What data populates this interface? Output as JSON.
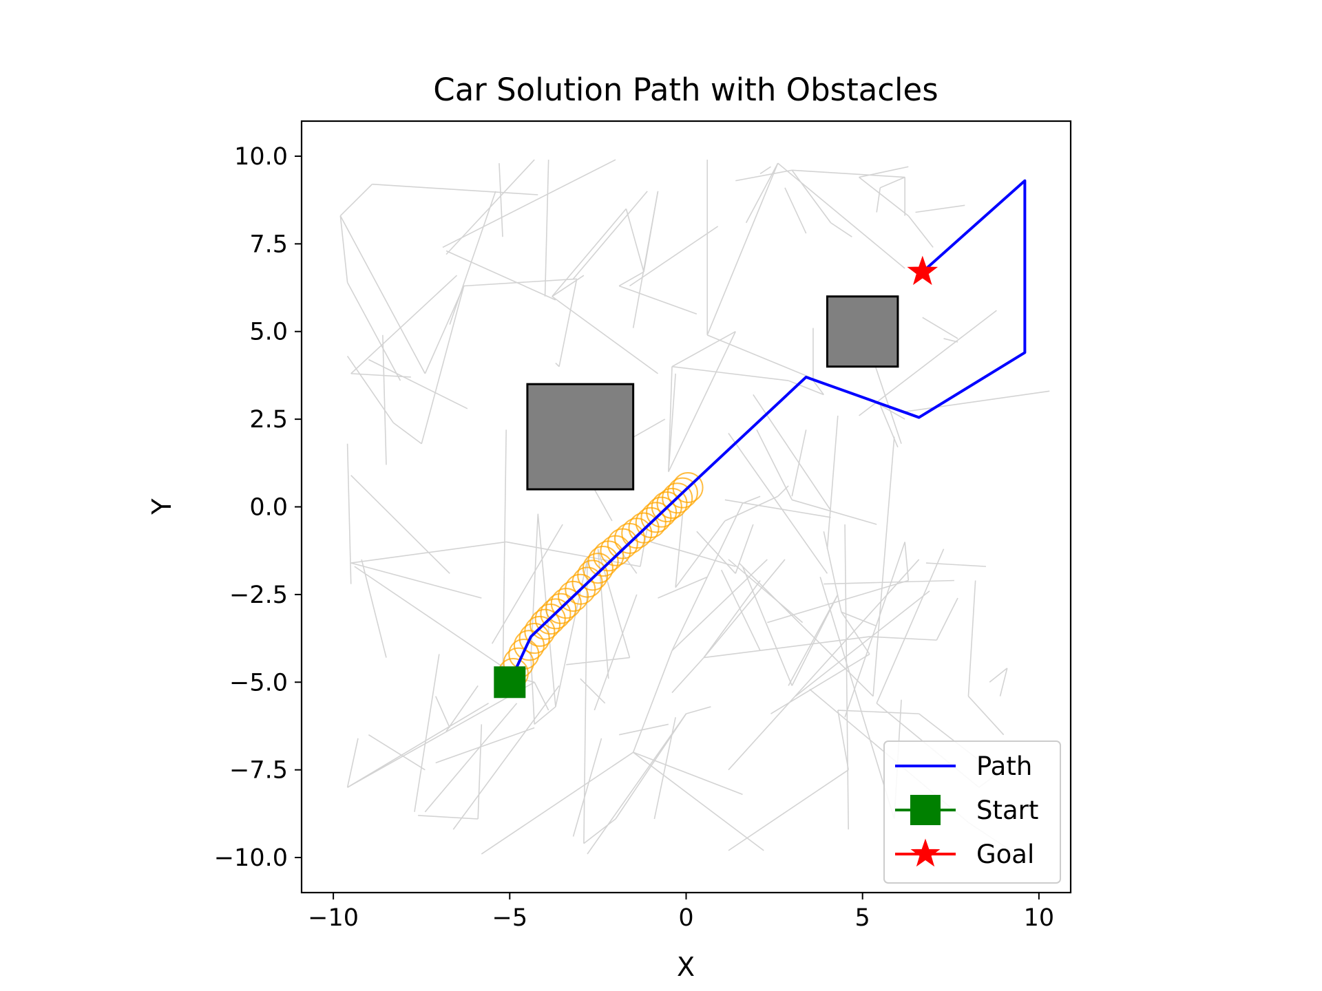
{
  "chart_data": {
    "type": "scatter",
    "title": "Car Solution Path with Obstacles",
    "xlabel": "X",
    "ylabel": "Y",
    "xlim": [
      -10.9,
      10.9
    ],
    "ylim": [
      -11.0,
      11.0
    ],
    "grid": false,
    "legend_placement": "lower-right",
    "x_ticks": [
      -10,
      -5,
      0,
      5,
      10
    ],
    "x_tick_labels": [
      "−10",
      "−5",
      "0",
      "5",
      "10"
    ],
    "y_ticks": [
      10,
      7.5,
      5,
      2.5,
      0,
      -2.5,
      -5,
      -7.5,
      -10
    ],
    "y_tick_labels": [
      "10.0",
      "7.5",
      "5.0",
      "2.5",
      "0.0",
      "−2.5",
      "−5.0",
      "−7.5",
      "−10.0"
    ],
    "colors": {
      "path": "#0000ff",
      "start": "#008000",
      "goal": "#ff0000",
      "tree": "#d3d3d3",
      "footprint": "#ffa500",
      "obstacle_fill": "#808080",
      "obstacle_edge": "#000000"
    },
    "obstacles": [
      {
        "x0": -4.5,
        "y0": 0.5,
        "x1": -1.5,
        "y1": 3.5
      },
      {
        "x0": 4.0,
        "y0": 4.0,
        "x1": 6.0,
        "y1": 6.0
      }
    ],
    "series": [
      {
        "name": "Path",
        "x": [
          -5.0,
          -4.4,
          0.0,
          3.4,
          6.6,
          9.6,
          9.6,
          6.7
        ],
        "y": [
          -5.0,
          -3.7,
          0.5,
          3.7,
          2.55,
          4.4,
          9.3,
          6.7
        ]
      }
    ],
    "start": {
      "name": "Start",
      "x": -5.0,
      "y": -5.0
    },
    "goal": {
      "name": "Goal",
      "x": 6.7,
      "y": 6.7
    },
    "footprints": {
      "x": [
        -4.9,
        -4.75,
        -4.6,
        -4.45,
        -4.3,
        -4.15,
        -4.0,
        -3.85,
        -3.7,
        -3.55,
        -3.4,
        -3.2,
        -3.0,
        -2.8,
        -2.65,
        -2.5,
        -2.35,
        -2.2,
        -2.0,
        -1.8,
        -1.6,
        -1.4,
        -1.2,
        -1.0,
        -0.85,
        -0.7,
        -0.55,
        -0.4,
        -0.25,
        -0.1,
        0.05
      ],
      "y": [
        -4.75,
        -4.45,
        -4.2,
        -3.95,
        -3.75,
        -3.55,
        -3.35,
        -3.2,
        -3.05,
        -2.9,
        -2.75,
        -2.55,
        -2.35,
        -2.15,
        -1.95,
        -1.75,
        -1.55,
        -1.4,
        -1.25,
        -1.05,
        -0.9,
        -0.75,
        -0.6,
        -0.45,
        -0.3,
        -0.15,
        0.0,
        0.1,
        0.25,
        0.4,
        0.55
      ],
      "r": 0.42
    },
    "tree_edges": [
      [
        -9.8,
        8.3,
        -8.9,
        9.2
      ],
      [
        -8.9,
        9.2,
        -4.2,
        8.9
      ],
      [
        -9.8,
        8.3,
        -9.6,
        6.4
      ],
      [
        -9.6,
        6.4,
        -8.1,
        3.6
      ],
      [
        -9.8,
        8.3,
        -7.4,
        3.8
      ],
      [
        -9.5,
        3.8,
        -6.5,
        6.6
      ],
      [
        -9.5,
        3.8,
        -7.8,
        3.7
      ],
      [
        -9.6,
        4.3,
        -8.3,
        2.4
      ],
      [
        -8.3,
        2.4,
        -7.5,
        1.8
      ],
      [
        -8.6,
        4.9,
        -8.5,
        1.2
      ],
      [
        -9.6,
        1.8,
        -9.5,
        -2.2
      ],
      [
        -9.5,
        0.9,
        -6.7,
        -1.9
      ],
      [
        -9.5,
        -1.6,
        -5.1,
        -1.0
      ],
      [
        -9.5,
        -1.6,
        -5.8,
        -2.6
      ],
      [
        -9.4,
        -1.7,
        -4.7,
        -4.9
      ],
      [
        -9.6,
        -8.0,
        -9.3,
        -6.6
      ],
      [
        -9.6,
        -8.0,
        -5.6,
        -5.6
      ],
      [
        -9.6,
        -8.0,
        -4.3,
        -5.0
      ],
      [
        -9.0,
        -6.5,
        -7.4,
        -7.5
      ],
      [
        -7.7,
        -8.7,
        -7.0,
        -4.2
      ],
      [
        -7.4,
        -8.7,
        -4.8,
        -5.6
      ],
      [
        -7.6,
        -8.8,
        -5.9,
        -8.9
      ],
      [
        -5.9,
        -8.9,
        -5.8,
        -6.2
      ],
      [
        -6.6,
        -9.2,
        -3.6,
        -5.1
      ],
      [
        -5.8,
        -9.9,
        -1.5,
        -7.0
      ],
      [
        -7.1,
        -5.4,
        -6.7,
        -6.3
      ],
      [
        -6.8,
        -6.4,
        -5.9,
        -5.1
      ],
      [
        -9.0,
        4.2,
        -6.2,
        2.8
      ],
      [
        -5.3,
        9.8,
        -5.2,
        7.7
      ],
      [
        -4.3,
        9.9,
        -6.8,
        7.2
      ],
      [
        -5.4,
        9.0,
        -6.7,
        5.2
      ],
      [
        -6.8,
        7.3,
        -3.7,
        5.9
      ],
      [
        -3.9,
        9.9,
        -4.0,
        6.0
      ],
      [
        -3.8,
        6.0,
        -2.9,
        6.6
      ],
      [
        -3.8,
        6.0,
        -0.8,
        3.8
      ],
      [
        -3.8,
        6.0,
        -1.7,
        8.5
      ],
      [
        -1.7,
        8.5,
        -1.2,
        6.7
      ],
      [
        -1.2,
        6.7,
        -1.9,
        6.3
      ],
      [
        -3.1,
        6.5,
        -3.6,
        4.0
      ],
      [
        -3.6,
        4.0,
        -3.7,
        4.1
      ],
      [
        -2.0,
        9.9,
        -6.9,
        7.4
      ],
      [
        -3.1,
        6.5,
        -6.3,
        6.3
      ],
      [
        -3.2,
        6.5,
        -1.1,
        9.0
      ],
      [
        -0.8,
        9.0,
        -1.2,
        6.7
      ],
      [
        -1.9,
        6.3,
        0.3,
        5.5
      ],
      [
        -1.6,
        6.3,
        0.9,
        8.0
      ],
      [
        -0.5,
        1.0,
        -0.3,
        3.8
      ],
      [
        -0.8,
        9.0,
        -1.5,
        5.1
      ],
      [
        -6.3,
        6.3,
        -7.5,
        1.8
      ],
      [
        -6.3,
        6.3,
        -7.4,
        3.8
      ],
      [
        -0.4,
        4.0,
        1.4,
        5.0
      ],
      [
        -0.4,
        4.0,
        2.9,
        3.6
      ],
      [
        -0.4,
        4.0,
        -0.5,
        1.0
      ],
      [
        0.6,
        9.9,
        0.6,
        4.9
      ],
      [
        0.6,
        4.9,
        2.6,
        9.8
      ],
      [
        0.6,
        4.9,
        3.5,
        3.7
      ],
      [
        1.4,
        5.0,
        -0.5,
        1.0
      ],
      [
        1.4,
        9.3,
        3.0,
        9.6
      ],
      [
        3.0,
        9.6,
        6.2,
        9.4
      ],
      [
        3.0,
        9.6,
        4.1,
        8.1
      ],
      [
        4.1,
        8.1,
        4.7,
        7.7
      ],
      [
        2.6,
        9.8,
        6.2,
        6.8
      ],
      [
        6.3,
        9.7,
        4.9,
        9.4
      ],
      [
        4.9,
        9.4,
        6.3,
        8.3
      ],
      [
        6.3,
        8.3,
        7.0,
        7.4
      ],
      [
        6.5,
        8.4,
        7.9,
        8.6
      ],
      [
        2.1,
        9.5,
        2.4,
        9.7
      ],
      [
        5.4,
        8.4,
        5.5,
        9.1
      ],
      [
        5.5,
        9.1,
        6.2,
        9.4
      ],
      [
        6.2,
        9.4,
        6.2,
        8.3
      ],
      [
        6.7,
        5.4,
        7.7,
        4.8
      ],
      [
        7.3,
        4.8,
        7.7,
        4.7
      ],
      [
        4.9,
        2.6,
        8.8,
        5.6
      ],
      [
        6.1,
        2.7,
        10.3,
        3.3
      ],
      [
        -5.1,
        2.2,
        -5.2,
        -5.1
      ],
      [
        -4.2,
        -0.2,
        -3.7,
        -5.7
      ],
      [
        -4.2,
        -0.2,
        -4.4,
        -4.3
      ],
      [
        -4.4,
        -4.3,
        -4.3,
        -6.2
      ],
      [
        -5.1,
        -1.0,
        -1.3,
        -1.7
      ],
      [
        -4.7,
        -4.9,
        -4.3,
        -5.0
      ],
      [
        -4.3,
        -5.0,
        -3.9,
        -5.8
      ],
      [
        -4.3,
        -6.2,
        -3.7,
        -5.7
      ],
      [
        -3.7,
        -5.7,
        -2.8,
        -1.5
      ],
      [
        -2.8,
        -1.5,
        -2.9,
        -9.6
      ],
      [
        -3.4,
        -4.5,
        -1.6,
        -4.3
      ],
      [
        -1.6,
        -4.3,
        -2.5,
        -1.2
      ],
      [
        -2.5,
        -1.2,
        -2.2,
        -4.9
      ],
      [
        -2.9,
        -9.6,
        -2.0,
        -8.9
      ],
      [
        -2.0,
        -8.9,
        0.0,
        -5.9
      ],
      [
        -2.8,
        -9.9,
        0.0,
        -5.9
      ],
      [
        0.0,
        -5.9,
        0.7,
        -5.7
      ],
      [
        -1.5,
        -7.0,
        1.6,
        -8.2
      ],
      [
        -1.5,
        -7.0,
        -0.4,
        -4.1
      ],
      [
        -1.5,
        -7.0,
        2.2,
        -9.8
      ],
      [
        -0.4,
        -4.1,
        2.3,
        -1.5
      ],
      [
        -1.0,
        -1.0,
        1.4,
        -1.7
      ],
      [
        -0.4,
        -4.1,
        1.6,
        0.1
      ],
      [
        1.6,
        0.1,
        2.1,
        0.3
      ],
      [
        -1.9,
        -1.2,
        -1.4,
        -1.9
      ],
      [
        -1.1,
        -0.6,
        -1.3,
        -1.7
      ],
      [
        -0.1,
        -0.2,
        -0.3,
        -2.3
      ],
      [
        -0.3,
        -2.3,
        1.1,
        -0.4
      ],
      [
        0.3,
        -0.7,
        1.4,
        -1.9
      ],
      [
        1.4,
        -1.9,
        1.9,
        -0.5
      ],
      [
        1.1,
        -0.4,
        2.6,
        0.3
      ],
      [
        2.6,
        0.3,
        2.9,
        0.6
      ],
      [
        1.1,
        0.2,
        4.1,
        -0.3
      ],
      [
        1.6,
        -1.7,
        3.0,
        -5.1
      ],
      [
        3.0,
        -5.1,
        4.3,
        -2.5
      ],
      [
        4.3,
        -2.5,
        2.9,
        -5.1
      ],
      [
        2.0,
        2.2,
        3.0,
        0.2
      ],
      [
        3.0,
        0.2,
        5.4,
        -0.5
      ],
      [
        3.1,
        -5.4,
        6.9,
        -2.4
      ],
      [
        3.8,
        -2.0,
        5.9,
        -8.9
      ],
      [
        5.9,
        -8.9,
        6.1,
        -5.5
      ],
      [
        4.5,
        -0.5,
        4.6,
        -9.2
      ],
      [
        2.4,
        -5.9,
        5.2,
        -4.2
      ],
      [
        -0.4,
        -5.3,
        0.5,
        -4.3
      ],
      [
        0.5,
        -4.3,
        5.2,
        -3.7
      ],
      [
        0.5,
        -4.3,
        2.8,
        -1.5
      ],
      [
        0.5,
        -4.3,
        2.1,
        -2.1
      ],
      [
        5.2,
        -4.2,
        4.4,
        -3.0
      ],
      [
        4.4,
        -3.0,
        5.4,
        -3.4
      ],
      [
        1.2,
        -7.5,
        6.6,
        -1.5
      ],
      [
        1.2,
        -9.8,
        4.6,
        -7.5
      ],
      [
        4.6,
        -7.5,
        4.3,
        -5.8
      ],
      [
        4.3,
        -5.8,
        6.6,
        -5.9
      ],
      [
        6.6,
        -5.9,
        8.4,
        -7.3
      ],
      [
        7.3,
        -1.2,
        5.4,
        -5.6
      ],
      [
        5.4,
        -5.6,
        8.3,
        -8.0
      ],
      [
        8.3,
        -8.0,
        9.1,
        -7.4
      ],
      [
        8.2,
        -2.1,
        8.0,
        -5.4
      ],
      [
        8.0,
        -5.4,
        9.0,
        -6.5
      ],
      [
        8.6,
        -5.0,
        9.1,
        -4.6
      ],
      [
        9.1,
        -4.6,
        8.9,
        -5.4
      ],
      [
        7.7,
        -2.6,
        7.1,
        -3.8
      ],
      [
        7.1,
        -3.8,
        5.2,
        -3.7
      ],
      [
        6.8,
        -1.6,
        8.5,
        -1.7
      ],
      [
        6.3,
        -2.1,
        2.3,
        -3.3
      ],
      [
        6.3,
        -2.1,
        6.2,
        -1.0
      ],
      [
        4.4,
        -3.0,
        3.9,
        -0.7
      ],
      [
        6.2,
        -1.0,
        4.5,
        -6.0
      ],
      [
        3.9,
        -2.2,
        7.6,
        -2.1
      ],
      [
        3.5,
        -5.2,
        8.0,
        -9.0
      ],
      [
        8.0,
        -9.0,
        9.2,
        -9.8
      ],
      [
        -2.6,
        -5.8,
        -1.4,
        -2.5
      ],
      [
        -0.9,
        -8.9,
        -0.3,
        -6.0
      ],
      [
        -3.2,
        -9.4,
        -2.4,
        -6.6
      ],
      [
        -7.1,
        -7.3,
        -4.3,
        -6.3
      ],
      [
        -1.9,
        -6.5,
        -0.5,
        -6.2
      ],
      [
        -2.3,
        -5.6,
        -3.0,
        -4.9
      ],
      [
        -3.5,
        -0.5,
        -5.5,
        -3.9
      ],
      [
        -0.8,
        -2.6,
        0.6,
        -2.0
      ],
      [
        1.2,
        -1.5,
        3.3,
        -3.3
      ],
      [
        1.0,
        -1.8,
        2.1,
        -4.1
      ],
      [
        -9.2,
        -1.5,
        -8.5,
        -4.3
      ],
      [
        -3.4,
        0.9,
        -0.6,
        2.5
      ],
      [
        -2.6,
        0.5,
        -2.1,
        -0.4
      ],
      [
        3.6,
        5.1,
        3.6,
        3.6
      ],
      [
        3.6,
        3.6,
        3.9,
        3.2
      ],
      [
        3.9,
        3.2,
        2.9,
        3.6
      ],
      [
        4.3,
        2.6,
        4.0,
        -1.2
      ],
      [
        3.4,
        2.2,
        3.0,
        0.3
      ],
      [
        5.9,
        2.0,
        5.3,
        -5.4
      ],
      [
        5.3,
        -5.4,
        1.5,
        -1.6
      ],
      [
        1.2,
        2.1,
        4.0,
        -1.9
      ],
      [
        1.9,
        3.2,
        4.1,
        -0.1
      ],
      [
        6.2,
        2.5,
        5.5,
        2.9
      ],
      [
        5.5,
        2.9,
        6.0,
        1.7
      ],
      [
        5.2,
        4.5,
        6.1,
        1.8
      ],
      [
        1.7,
        8.1,
        2.6,
        9.8
      ],
      [
        3.4,
        7.8,
        2.8,
        9.1
      ]
    ],
    "legend": [
      {
        "name": "Path",
        "marker": "line"
      },
      {
        "name": "Start",
        "marker": "square"
      },
      {
        "name": "Goal",
        "marker": "star"
      }
    ]
  }
}
